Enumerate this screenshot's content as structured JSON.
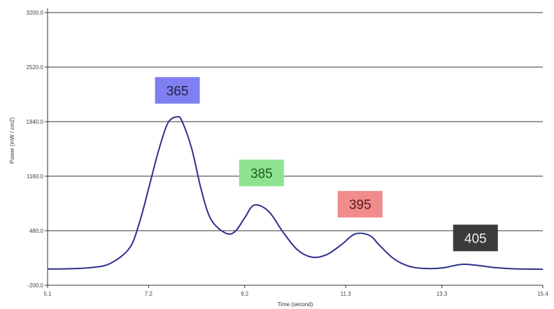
{
  "chart_data": {
    "type": "line",
    "xlabel": "Time (second)",
    "ylabel": "Power (mW / cm2)",
    "xlim": [
      5.1,
      15.4
    ],
    "ylim": [
      -200.0,
      3200.0
    ],
    "x_ticks": [
      "5.1",
      "7.2",
      "9.2",
      "11.3",
      "13.3",
      "15.4"
    ],
    "y_ticks": [
      "-200.0",
      "480.0",
      "1160.0",
      "1840.0",
      "2520.0",
      "3200.0"
    ],
    "grid": "horizontal",
    "series": [
      {
        "color": "#2e2e8c",
        "x": [
          5.1,
          5.5,
          6.0,
          6.4,
          6.8,
          7.0,
          7.2,
          7.4,
          7.6,
          7.8,
          7.9,
          8.1,
          8.3,
          8.5,
          8.8,
          9.0,
          9.2,
          9.4,
          9.7,
          10.0,
          10.3,
          10.6,
          10.9,
          11.2,
          11.5,
          11.8,
          12.0,
          12.3,
          12.6,
          12.9,
          13.3,
          13.7,
          14.0,
          14.4,
          14.8,
          15.4
        ],
        "y": [
          2,
          5,
          20,
          70,
          260,
          560,
          1000,
          1460,
          1820,
          1900,
          1840,
          1500,
          980,
          620,
          450,
          470,
          640,
          800,
          720,
          460,
          240,
          150,
          180,
          300,
          440,
          420,
          300,
          130,
          40,
          10,
          15,
          60,
          50,
          20,
          5,
          0
        ]
      }
    ],
    "annotations": [
      {
        "text": "365",
        "x": 7.8,
        "y": 2230,
        "bg": "#7f7ff2",
        "fg": "#22224a"
      },
      {
        "text": "385",
        "x": 9.55,
        "y": 1200,
        "bg": "#8fe38f",
        "fg": "#1e5a1e"
      },
      {
        "text": "395",
        "x": 11.6,
        "y": 810,
        "bg": "#f08c8c",
        "fg": "#5a1a1a"
      },
      {
        "text": "405",
        "x": 14.0,
        "y": 390,
        "bg": "#3b3b3b",
        "fg": "#eeeeee"
      }
    ]
  }
}
